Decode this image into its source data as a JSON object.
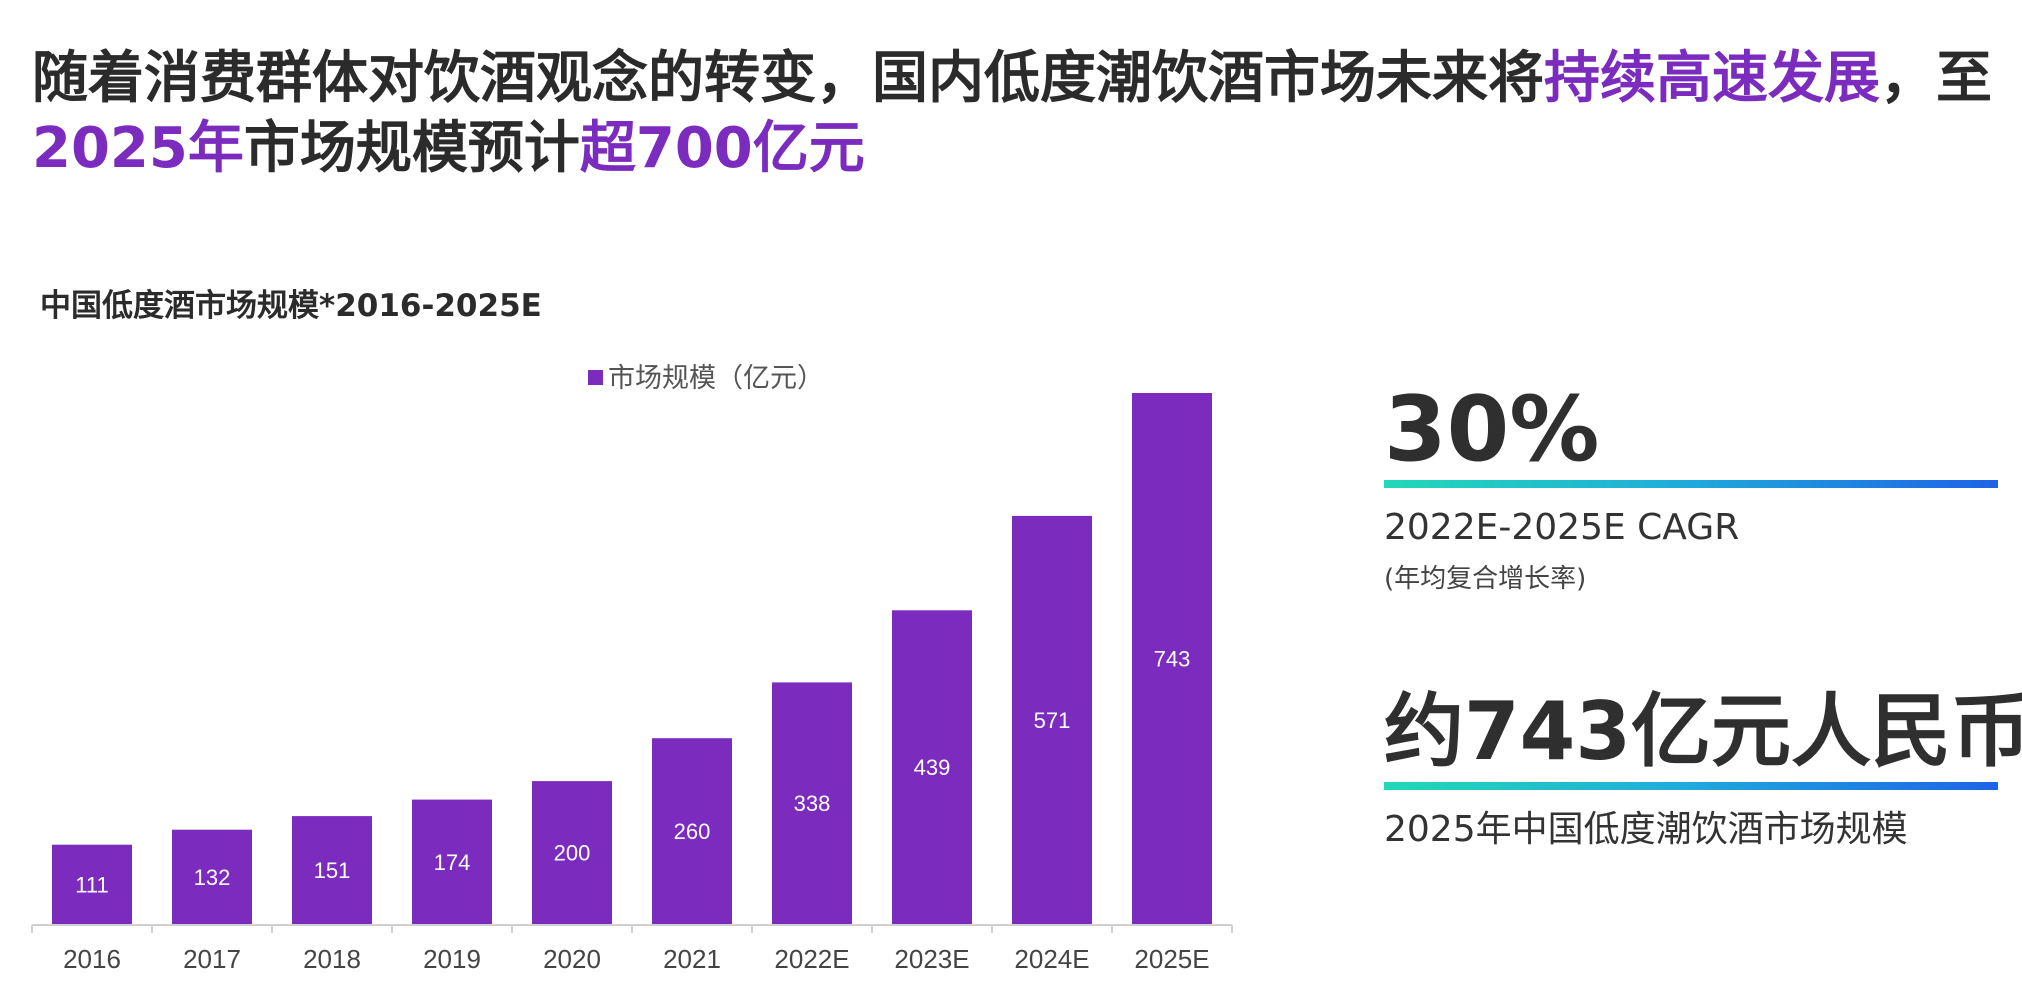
{
  "headline": {
    "line1_part1": "随着消费群体对饮酒观念的转变，国内低度潮饮酒市场未来将",
    "line1_highlight": "持续高速发展",
    "line1_part2": "，至",
    "line2_highlight1": "2025年",
    "line2_part1": "市场规模预计",
    "line2_highlight2": "超700亿元"
  },
  "colors": {
    "accent": "#7b2cbf",
    "bar": "#7b2cbf",
    "text": "#2b2b2b",
    "line_gradient_start": "#22d8b6",
    "line_gradient_end": "#1f63e8"
  },
  "chart_data": {
    "type": "bar",
    "title": "中国低度酒市场规模*2016-2025E",
    "legend": {
      "label": "市场规模（亿元）",
      "placement": "top-center"
    },
    "categories": [
      "2016",
      "2017",
      "2018",
      "2019",
      "2020",
      "2021",
      "2022E",
      "2023E",
      "2024E",
      "2025E"
    ],
    "series": [
      {
        "name": "市场规模（亿元）",
        "values": [
          111,
          132,
          151,
          174,
          200,
          260,
          338,
          439,
          571,
          743
        ]
      }
    ],
    "xlabel": "",
    "ylabel": "",
    "ylim": [
      0,
      743
    ],
    "grid": false,
    "data_labels": true
  },
  "stats": {
    "cagr_value": "30%",
    "cagr_caption": "2022E-2025E CAGR",
    "cagr_note": "(年均复合增长率)",
    "market_value": "约743亿元人民币",
    "market_caption": "2025年中国低度潮饮酒市场规模"
  }
}
